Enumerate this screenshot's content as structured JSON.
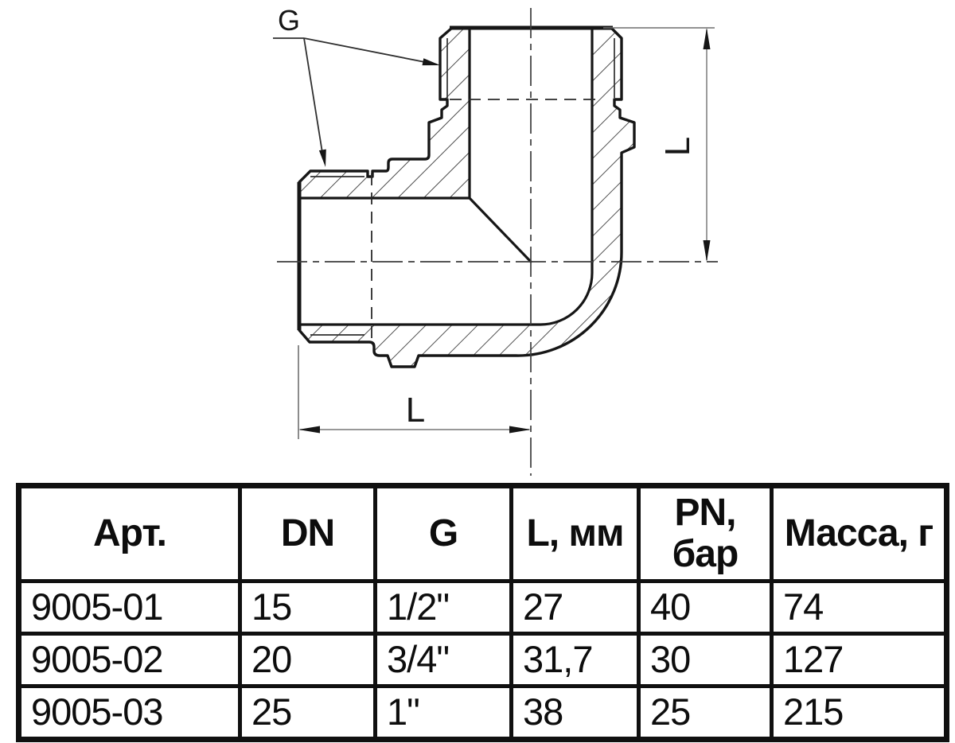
{
  "drawing": {
    "thread_label": "G",
    "vertical_dim_label": "L",
    "horizontal_dim_label": "L"
  },
  "table": {
    "headers": [
      "Арт.",
      "DN",
      "G",
      "L, мм",
      "PN,\nбар",
      "Масса, г"
    ],
    "rows": [
      [
        "9005-01",
        "15",
        "1/2\"",
        "27",
        "40",
        "74"
      ],
      [
        "9005-02",
        "20",
        "3/4\"",
        "31,7",
        "30",
        "127"
      ],
      [
        "9005-03",
        "25",
        "1\"",
        "38",
        "25",
        "215"
      ]
    ]
  },
  "colors": {
    "outline": "#161616",
    "thin_line": "#2f2f2f",
    "centerline": "#3c3c3c",
    "dim_line": "#8a8a8a",
    "table_border": "#101010",
    "background": "#ffffff"
  }
}
